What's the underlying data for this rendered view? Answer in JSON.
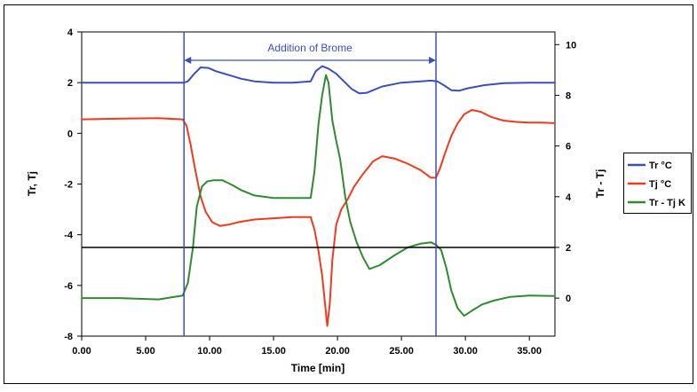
{
  "chart_data": {
    "type": "line",
    "xlabel": "Time [min]",
    "ylabel_left": "Tr, Tj",
    "ylabel_right": "Tr - Tj",
    "xlim": [
      0,
      37
    ],
    "ylim_left": [
      -8,
      4
    ],
    "ylim_right": [
      -1.5,
      10.5
    ],
    "x_ticks": [
      0,
      5,
      10,
      15,
      20,
      25,
      30,
      35
    ],
    "x_tick_labels": [
      "0.00",
      "5.00",
      "10.00",
      "15.00",
      "20.00",
      "25.00",
      "30.00",
      "35.00"
    ],
    "y_left_ticks": [
      4,
      2,
      0,
      -2,
      -4,
      -6,
      -8
    ],
    "y_left_tick_labels": [
      "4",
      "2",
      "0",
      "-2",
      "-4",
      "-6",
      "-8"
    ],
    "y_right_ticks": [
      10,
      8,
      6,
      4,
      2,
      0
    ],
    "y_right_tick_labels": [
      "10",
      "8",
      "6",
      "4",
      "2",
      "0"
    ],
    "grid": false,
    "legend_position": "right",
    "annotation": {
      "text": "Addition of Brome",
      "x_start": 8.0,
      "x_end": 27.7,
      "color": "#3b4fb8"
    },
    "reference_line": {
      "axis": "right",
      "y": 2.0,
      "color": "#000000"
    },
    "series": [
      {
        "name": "Tr °C",
        "axis": "left",
        "color": "#3b4fb8",
        "x": [
          0,
          8.0,
          8.3,
          8.8,
          9.3,
          9.9,
          10.5,
          11.5,
          12.5,
          13.5,
          15.0,
          16.5,
          17.9,
          18.3,
          18.8,
          19.3,
          19.9,
          20.5,
          21.1,
          21.7,
          22.3,
          23.5,
          25.0,
          26.5,
          27.3,
          27.8,
          28.3,
          28.9,
          29.5,
          30.2,
          31.5,
          33.0,
          35.0,
          37.0
        ],
        "y": [
          2.0,
          2.0,
          2.05,
          2.35,
          2.6,
          2.58,
          2.45,
          2.3,
          2.15,
          2.05,
          2.0,
          2.0,
          2.05,
          2.45,
          2.65,
          2.55,
          2.35,
          2.05,
          1.75,
          1.58,
          1.6,
          1.85,
          2.0,
          2.05,
          2.08,
          2.05,
          1.9,
          1.7,
          1.68,
          1.78,
          1.9,
          1.98,
          2.0,
          2.0
        ]
      },
      {
        "name": "Tj °C",
        "axis": "left",
        "color": "#f03a1e",
        "x": [
          0,
          3.0,
          6.0,
          7.9,
          8.2,
          8.5,
          8.9,
          9.3,
          9.7,
          10.2,
          10.8,
          11.5,
          12.3,
          13.5,
          15.0,
          16.5,
          17.9,
          18.2,
          18.5,
          18.8,
          19.0,
          19.2,
          19.4,
          19.6,
          19.9,
          20.3,
          20.8,
          21.3,
          22.0,
          22.8,
          23.5,
          24.5,
          25.5,
          26.5,
          27.3,
          27.7,
          28.0,
          28.4,
          28.9,
          29.4,
          29.9,
          30.5,
          31.2,
          32.0,
          33.0,
          34.0,
          35.0,
          36.0,
          37.0
        ],
        "y": [
          0.55,
          0.58,
          0.6,
          0.55,
          0.3,
          -0.4,
          -1.5,
          -2.5,
          -3.1,
          -3.5,
          -3.65,
          -3.6,
          -3.5,
          -3.4,
          -3.35,
          -3.3,
          -3.3,
          -3.8,
          -4.6,
          -5.6,
          -6.6,
          -7.6,
          -6.7,
          -5.0,
          -3.6,
          -3.0,
          -2.6,
          -2.1,
          -1.6,
          -1.1,
          -0.9,
          -1.0,
          -1.2,
          -1.45,
          -1.75,
          -1.75,
          -1.4,
          -0.8,
          -0.1,
          0.4,
          0.75,
          0.92,
          0.85,
          0.65,
          0.5,
          0.45,
          0.42,
          0.42,
          0.4
        ]
      },
      {
        "name": "Tr - Tj K",
        "axis": "right",
        "color": "#2e8b2e",
        "x": [
          0,
          3.0,
          6.0,
          7.9,
          8.3,
          8.7,
          9.0,
          9.4,
          9.8,
          10.3,
          11.0,
          11.8,
          12.5,
          13.5,
          15.0,
          16.5,
          17.9,
          18.2,
          18.5,
          18.8,
          19.1,
          19.3,
          19.6,
          19.9,
          20.2,
          20.6,
          21.0,
          21.5,
          22.0,
          22.5,
          23.3,
          24.5,
          25.5,
          26.5,
          27.3,
          27.7,
          28.1,
          28.5,
          28.9,
          29.4,
          29.9,
          30.5,
          31.3,
          32.2,
          33.5,
          35.0,
          37.0
        ],
        "y": [
          0.0,
          0.0,
          -0.05,
          0.1,
          0.6,
          2.0,
          3.6,
          4.4,
          4.6,
          4.65,
          4.65,
          4.45,
          4.25,
          4.05,
          3.95,
          3.95,
          3.95,
          5.0,
          6.8,
          8.0,
          8.8,
          8.5,
          7.0,
          6.2,
          5.5,
          4.0,
          3.0,
          2.2,
          1.6,
          1.15,
          1.3,
          1.7,
          2.0,
          2.15,
          2.2,
          2.1,
          1.9,
          1.2,
          0.3,
          -0.4,
          -0.7,
          -0.5,
          -0.25,
          -0.1,
          0.05,
          0.1,
          0.08
        ]
      }
    ]
  }
}
